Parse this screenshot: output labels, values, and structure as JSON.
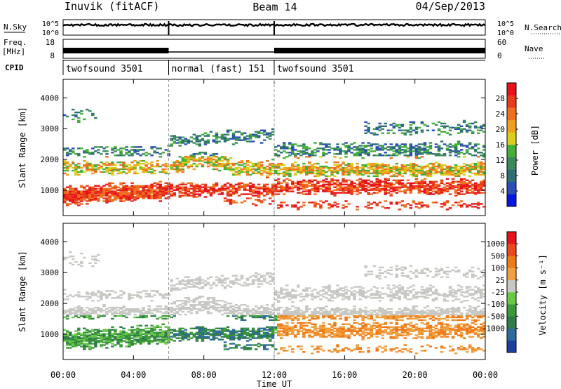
{
  "header": {
    "station": "Inuvik (fitACF)",
    "beam": "Beam 14",
    "date": "04/Sep/2013"
  },
  "status_panels": {
    "nsky_label": "N.Sky",
    "nsearch_label": "N.Search",
    "nsky_ticks": [
      "10^5",
      "10^0"
    ],
    "nsearch_ticks": [
      "10^5",
      "10^0"
    ],
    "freq_label": "Freq.",
    "freq_unit": "[MHz]",
    "freq_ticks": [
      "18",
      "8"
    ],
    "nave_label": "Nave",
    "nave_ticks": [
      "60",
      "0"
    ],
    "cpid_label": "CPID",
    "cpid_segments": [
      {
        "label": "twofsound 3501",
        "start_h": 0,
        "end_h": 6
      },
      {
        "label": "normal (fast) 151",
        "start_h": 6,
        "end_h": 12
      },
      {
        "label": "twofsound 3501",
        "start_h": 12,
        "end_h": 24
      }
    ]
  },
  "colors": {
    "power_scale": [
      "#0a14e0",
      "#2a4db8",
      "#2e6f76",
      "#3a8a5a",
      "#44b03a",
      "#d9cf1a",
      "#f0a020",
      "#f07020",
      "#e83a1c",
      "#e8121c"
    ],
    "velocity_scale": [
      "#1e3fa0",
      "#2e6a9a",
      "#2e7d4a",
      "#3a9a3a",
      "#6ac848",
      "#c8c8c4",
      "#f0a040",
      "#f07a18",
      "#e84a1c",
      "#e8121c"
    ]
  },
  "chart_data": [
    {
      "type": "heatmap",
      "title": "",
      "xlabel": "Time UT",
      "ylabel": "Slant Range [km]",
      "x_range_h": [
        0,
        24
      ],
      "x_ticks": [
        "00:00",
        "04:00",
        "08:00",
        "12:00",
        "16:00",
        "20:00",
        "00:00"
      ],
      "y_range_km": [
        180,
        4600
      ],
      "y_ticks": [
        1000,
        2000,
        3000,
        4000
      ],
      "colorbar": {
        "label": "Power [dB]",
        "range": [
          0,
          32
        ],
        "ticks": [
          "4",
          "8",
          "12",
          "16",
          "20",
          "24",
          "28"
        ]
      }
    },
    {
      "type": "heatmap",
      "title": "",
      "xlabel": "Time UT",
      "ylabel": "Slant Range [km]",
      "x_range_h": [
        0,
        24
      ],
      "x_ticks": [
        "00:00",
        "04:00",
        "08:00",
        "12:00",
        "16:00",
        "20:00",
        "00:00"
      ],
      "y_range_km": [
        180,
        4600
      ],
      "y_ticks": [
        1000,
        2000,
        3000,
        4000
      ],
      "colorbar": {
        "label": "Velocity [m s⁻¹]",
        "ticks": [
          "1000",
          "500",
          "100",
          "25",
          "-25",
          "-100",
          "-500",
          "-1000"
        ]
      }
    }
  ]
}
